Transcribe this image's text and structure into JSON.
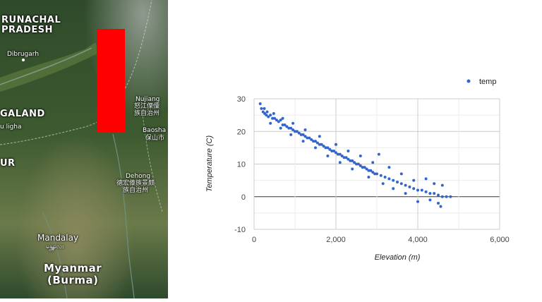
{
  "map": {
    "region_labels": {
      "arunachal_line1": "RUNACHAL",
      "arunachal_line2": "PRADESH",
      "nagaland": "GALAND",
      "manipur": "UR",
      "myanmar_line1": "Myanmar",
      "myanmar_line2": "(Burma)"
    },
    "city_labels": {
      "dibrugarh": "Dibrugarh",
      "kohima": "u ligha",
      "nujiang": "Nujiang",
      "nujiang_native_1": "怒江傈僳",
      "nujiang_native_2": "族自治州",
      "baoshan": "Baosha",
      "baoshan_native": "保山市",
      "dehong": "Dehong",
      "dehong_native_1": "德宏傣族景颇",
      "dehong_native_2": "族自治州",
      "mandalay": "Mandalay",
      "mandalay_native": "မန္တလေး"
    },
    "colors": {
      "terrain": "#3f5a30",
      "highlight": "#ff0000"
    }
  },
  "chart_data": {
    "type": "scatter",
    "xlabel": "Elevation (m)",
    "ylabel": "Temperature (C)",
    "xlim": [
      0,
      6000
    ],
    "ylim": [
      -10,
      30
    ],
    "x_ticks": [
      "0",
      "2,000",
      "4,000",
      "6,000"
    ],
    "y_ticks": [
      "-10",
      "0",
      "10",
      "20",
      "30"
    ],
    "grid": true,
    "legend_position": "top-right",
    "point_color": "#3366cc",
    "series": [
      {
        "name": "temp",
        "points": [
          [
            150,
            28.5
          ],
          [
            180,
            27
          ],
          [
            220,
            26
          ],
          [
            260,
            25.5
          ],
          [
            300,
            25
          ],
          [
            350,
            24.5
          ],
          [
            400,
            25
          ],
          [
            450,
            24
          ],
          [
            500,
            24
          ],
          [
            550,
            23.5
          ],
          [
            600,
            23
          ],
          [
            650,
            23.5
          ],
          [
            700,
            22
          ],
          [
            750,
            22
          ],
          [
            800,
            21.5
          ],
          [
            850,
            21
          ],
          [
            900,
            21
          ],
          [
            950,
            20.5
          ],
          [
            1000,
            20
          ],
          [
            1050,
            20
          ],
          [
            1100,
            19.5
          ],
          [
            1150,
            19
          ],
          [
            1200,
            19
          ],
          [
            1250,
            18.5
          ],
          [
            1300,
            18
          ],
          [
            1350,
            18
          ],
          [
            1400,
            17.5
          ],
          [
            1450,
            17
          ],
          [
            1500,
            17
          ],
          [
            1550,
            16.5
          ],
          [
            1600,
            16
          ],
          [
            1650,
            16
          ],
          [
            1700,
            15.5
          ],
          [
            1750,
            15
          ],
          [
            1800,
            15
          ],
          [
            1850,
            14.5
          ],
          [
            1900,
            14
          ],
          [
            1950,
            14
          ],
          [
            2000,
            13.5
          ],
          [
            2050,
            13
          ],
          [
            2100,
            13
          ],
          [
            2150,
            12.5
          ],
          [
            2200,
            12
          ],
          [
            2250,
            12
          ],
          [
            2300,
            11.5
          ],
          [
            2350,
            11
          ],
          [
            2400,
            11
          ],
          [
            2450,
            10.5
          ],
          [
            2500,
            10
          ],
          [
            2550,
            10
          ],
          [
            2600,
            9.5
          ],
          [
            2650,
            9
          ],
          [
            2700,
            9
          ],
          [
            2750,
            8.5
          ],
          [
            2800,
            8
          ],
          [
            2850,
            8
          ],
          [
            2900,
            7.5
          ],
          [
            2950,
            7
          ],
          [
            3000,
            7
          ],
          [
            3100,
            6.5
          ],
          [
            3200,
            6
          ],
          [
            3300,
            5.5
          ],
          [
            3400,
            5
          ],
          [
            3500,
            4.5
          ],
          [
            3600,
            4
          ],
          [
            3700,
            3.5
          ],
          [
            3800,
            3
          ],
          [
            3900,
            2.5
          ],
          [
            4000,
            2
          ],
          [
            4100,
            2
          ],
          [
            4200,
            1.5
          ],
          [
            4300,
            1
          ],
          [
            4400,
            1
          ],
          [
            4500,
            0.5
          ],
          [
            4600,
            0
          ],
          [
            4700,
            0
          ],
          [
            4800,
            0
          ],
          [
            250,
            27
          ],
          [
            320,
            26
          ],
          [
            480,
            25.5
          ],
          [
            700,
            24
          ],
          [
            950,
            22.5
          ],
          [
            1250,
            20.5
          ],
          [
            1600,
            18.5
          ],
          [
            2000,
            16
          ],
          [
            2300,
            14
          ],
          [
            2600,
            12.5
          ],
          [
            2900,
            10.5
          ],
          [
            3050,
            13
          ],
          [
            3300,
            9
          ],
          [
            3600,
            7
          ],
          [
            3900,
            5
          ],
          [
            4200,
            5.5
          ],
          [
            4400,
            4
          ],
          [
            4600,
            3.5
          ],
          [
            400,
            22.5
          ],
          [
            650,
            21
          ],
          [
            900,
            19
          ],
          [
            1200,
            17
          ],
          [
            1500,
            15
          ],
          [
            1800,
            12.5
          ],
          [
            2100,
            10.5
          ],
          [
            2400,
            8.5
          ],
          [
            2800,
            6
          ],
          [
            3150,
            4
          ],
          [
            3400,
            2.5
          ],
          [
            3700,
            1
          ],
          [
            4000,
            -1.5
          ],
          [
            4300,
            -1
          ],
          [
            4500,
            -2
          ],
          [
            4560,
            -3
          ]
        ]
      }
    ]
  }
}
